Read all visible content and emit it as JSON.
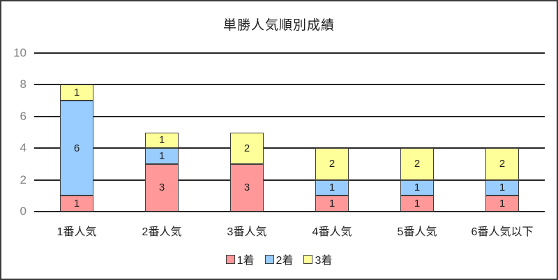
{
  "title": "単勝人気順別成績",
  "colors": {
    "series_1st": "#FF9999",
    "series_2nd": "#99CCFF",
    "series_3rd": "#FFFF99",
    "gridline": "#262626",
    "axis_label_gray": "#828282",
    "frame_border": "#3b3b3b"
  },
  "legend": {
    "items": [
      {
        "label": "1着",
        "color": "#FF9999"
      },
      {
        "label": "2着",
        "color": "#99CCFF"
      },
      {
        "label": "3着",
        "color": "#FFFF99"
      }
    ]
  },
  "chart_data": {
    "type": "bar",
    "stacked": true,
    "title": "単勝人気順別成績",
    "categories": [
      "1番人気",
      "2番人気",
      "3番人気",
      "4番人気",
      "5番人気",
      "6番人気以下"
    ],
    "series": [
      {
        "name": "1着",
        "color": "#FF9999",
        "values": [
          1,
          3,
          3,
          1,
          1,
          1
        ]
      },
      {
        "name": "2着",
        "color": "#99CCFF",
        "values": [
          6,
          1,
          0,
          1,
          1,
          1
        ]
      },
      {
        "name": "3着",
        "color": "#FFFF99",
        "values": [
          1,
          1,
          2,
          2,
          2,
          2
        ]
      }
    ],
    "totals": [
      8,
      5,
      5,
      4,
      4,
      4
    ],
    "xlabel": "",
    "ylabel": "",
    "ylim": [
      0,
      10
    ],
    "yticks": [
      0,
      2,
      4,
      6,
      8,
      10
    ],
    "grid": true,
    "data_labels": true,
    "legend_position": "bottom"
  }
}
